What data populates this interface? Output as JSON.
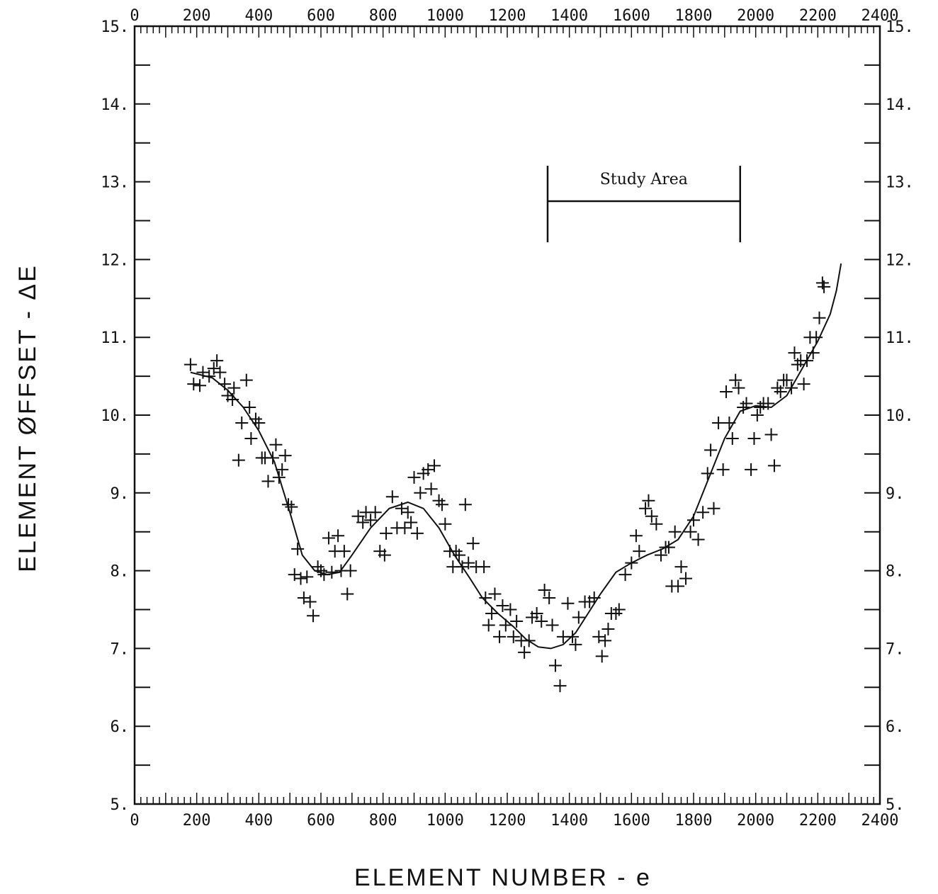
{
  "chart_data": {
    "type": "scatter",
    "xlabel": "ELEMENT NUMBER - e",
    "ylabel": "ELEMENT ØFFSET - ΔE",
    "xlim": [
      0,
      2400
    ],
    "ylim": [
      5,
      15
    ],
    "x_ticks": [
      0,
      200,
      400,
      600,
      800,
      1000,
      1200,
      1400,
      1600,
      1800,
      2000,
      2200,
      2400
    ],
    "y_ticks": [
      5,
      6,
      7,
      8,
      9,
      10,
      11,
      12,
      13,
      14,
      15
    ],
    "y_tick_labels": [
      "5.",
      "6.",
      "7.",
      "8.",
      "9.",
      "10.",
      "11.",
      "12.",
      "13.",
      "14.",
      "15."
    ],
    "grid": false,
    "legend": "none",
    "annotation": {
      "text": "Study Area",
      "x_start": 1330,
      "x_end": 1950,
      "y": 12.75
    },
    "series": [
      {
        "type": "scatter",
        "marker": "+",
        "points": [
          [
            180,
            10.65
          ],
          [
            190,
            10.4
          ],
          [
            210,
            10.38
          ],
          [
            220,
            10.55
          ],
          [
            240,
            10.5
          ],
          [
            255,
            10.6
          ],
          [
            265,
            10.7
          ],
          [
            275,
            10.55
          ],
          [
            290,
            10.4
          ],
          [
            300,
            10.25
          ],
          [
            315,
            10.2
          ],
          [
            320,
            10.35
          ],
          [
            335,
            9.42
          ],
          [
            345,
            9.9
          ],
          [
            360,
            10.45
          ],
          [
            370,
            10.1
          ],
          [
            375,
            9.7
          ],
          [
            390,
            9.95
          ],
          [
            400,
            9.9
          ],
          [
            410,
            9.45
          ],
          [
            420,
            9.45
          ],
          [
            430,
            9.15
          ],
          [
            445,
            9.45
          ],
          [
            455,
            9.62
          ],
          [
            465,
            9.2
          ],
          [
            475,
            9.3
          ],
          [
            485,
            9.48
          ],
          [
            495,
            8.85
          ],
          [
            505,
            8.82
          ],
          [
            515,
            7.95
          ],
          [
            525,
            8.28
          ],
          [
            535,
            7.9
          ],
          [
            545,
            7.65
          ],
          [
            555,
            7.92
          ],
          [
            565,
            7.6
          ],
          [
            575,
            7.42
          ],
          [
            590,
            8.05
          ],
          [
            600,
            8.0
          ],
          [
            610,
            7.95
          ],
          [
            625,
            8.42
          ],
          [
            635,
            7.98
          ],
          [
            645,
            8.25
          ],
          [
            655,
            8.45
          ],
          [
            665,
            8.0
          ],
          [
            675,
            8.25
          ],
          [
            685,
            7.7
          ],
          [
            695,
            8.0
          ],
          [
            720,
            8.7
          ],
          [
            735,
            8.62
          ],
          [
            745,
            8.75
          ],
          [
            760,
            8.65
          ],
          [
            775,
            8.75
          ],
          [
            790,
            8.25
          ],
          [
            805,
            8.2
          ],
          [
            810,
            8.48
          ],
          [
            830,
            8.95
          ],
          [
            845,
            8.55
          ],
          [
            860,
            8.8
          ],
          [
            870,
            8.55
          ],
          [
            880,
            8.75
          ],
          [
            890,
            8.62
          ],
          [
            900,
            9.2
          ],
          [
            910,
            8.48
          ],
          [
            920,
            9.0
          ],
          [
            930,
            9.25
          ],
          [
            945,
            9.3
          ],
          [
            955,
            9.05
          ],
          [
            965,
            9.35
          ],
          [
            980,
            8.9
          ],
          [
            990,
            8.85
          ],
          [
            1000,
            8.6
          ],
          [
            1015,
            8.25
          ],
          [
            1025,
            8.05
          ],
          [
            1035,
            8.25
          ],
          [
            1045,
            8.2
          ],
          [
            1055,
            8.05
          ],
          [
            1065,
            8.85
          ],
          [
            1075,
            8.1
          ],
          [
            1090,
            8.35
          ],
          [
            1100,
            8.05
          ],
          [
            1125,
            8.05
          ],
          [
            1130,
            7.65
          ],
          [
            1140,
            7.3
          ],
          [
            1150,
            7.45
          ],
          [
            1160,
            7.7
          ],
          [
            1175,
            7.15
          ],
          [
            1185,
            7.55
          ],
          [
            1195,
            7.3
          ],
          [
            1210,
            7.5
          ],
          [
            1220,
            7.15
          ],
          [
            1230,
            7.35
          ],
          [
            1245,
            7.1
          ],
          [
            1255,
            6.95
          ],
          [
            1270,
            7.1
          ],
          [
            1280,
            7.4
          ],
          [
            1295,
            7.45
          ],
          [
            1310,
            7.35
          ],
          [
            1320,
            7.75
          ],
          [
            1335,
            7.65
          ],
          [
            1345,
            7.3
          ],
          [
            1355,
            6.78
          ],
          [
            1370,
            6.52
          ],
          [
            1380,
            7.15
          ],
          [
            1395,
            7.58
          ],
          [
            1410,
            7.15
          ],
          [
            1420,
            7.05
          ],
          [
            1430,
            7.4
          ],
          [
            1450,
            7.6
          ],
          [
            1465,
            7.6
          ],
          [
            1480,
            7.65
          ],
          [
            1495,
            7.15
          ],
          [
            1505,
            6.9
          ],
          [
            1515,
            7.1
          ],
          [
            1525,
            7.25
          ],
          [
            1535,
            7.45
          ],
          [
            1550,
            7.45
          ],
          [
            1560,
            7.5
          ],
          [
            1580,
            7.95
          ],
          [
            1600,
            8.1
          ],
          [
            1615,
            8.45
          ],
          [
            1625,
            8.25
          ],
          [
            1645,
            8.8
          ],
          [
            1655,
            8.9
          ],
          [
            1665,
            8.7
          ],
          [
            1680,
            8.6
          ],
          [
            1695,
            8.2
          ],
          [
            1710,
            8.3
          ],
          [
            1720,
            8.3
          ],
          [
            1730,
            7.8
          ],
          [
            1740,
            8.5
          ],
          [
            1750,
            7.8
          ],
          [
            1760,
            8.05
          ],
          [
            1775,
            7.9
          ],
          [
            1790,
            8.5
          ],
          [
            1800,
            8.65
          ],
          [
            1815,
            8.4
          ],
          [
            1830,
            8.75
          ],
          [
            1845,
            9.25
          ],
          [
            1855,
            9.55
          ],
          [
            1865,
            8.8
          ],
          [
            1880,
            9.9
          ],
          [
            1895,
            9.3
          ],
          [
            1905,
            10.3
          ],
          [
            1915,
            9.9
          ],
          [
            1925,
            9.7
          ],
          [
            1935,
            10.45
          ],
          [
            1945,
            10.35
          ],
          [
            1960,
            10.1
          ],
          [
            1970,
            10.15
          ],
          [
            1985,
            9.3
          ],
          [
            1995,
            9.7
          ],
          [
            2005,
            10.0
          ],
          [
            2015,
            10.1
          ],
          [
            2025,
            10.15
          ],
          [
            2040,
            10.15
          ],
          [
            2050,
            9.75
          ],
          [
            2060,
            9.35
          ],
          [
            2070,
            10.35
          ],
          [
            2080,
            10.3
          ],
          [
            2090,
            10.45
          ],
          [
            2100,
            10.45
          ],
          [
            2115,
            10.35
          ],
          [
            2125,
            10.8
          ],
          [
            2135,
            10.65
          ],
          [
            2145,
            10.7
          ],
          [
            2155,
            10.4
          ],
          [
            2165,
            10.7
          ],
          [
            2175,
            11.0
          ],
          [
            2185,
            10.8
          ],
          [
            2195,
            11.0
          ],
          [
            2205,
            11.25
          ],
          [
            2215,
            11.7
          ],
          [
            2220,
            11.65
          ]
        ]
      },
      {
        "type": "line",
        "points": [
          [
            180,
            10.55
          ],
          [
            250,
            10.48
          ],
          [
            300,
            10.32
          ],
          [
            350,
            10.1
          ],
          [
            400,
            9.8
          ],
          [
            450,
            9.4
          ],
          [
            500,
            8.75
          ],
          [
            540,
            8.2
          ],
          [
            580,
            8.0
          ],
          [
            620,
            7.95
          ],
          [
            660,
            7.98
          ],
          [
            700,
            8.2
          ],
          [
            760,
            8.55
          ],
          [
            820,
            8.8
          ],
          [
            880,
            8.88
          ],
          [
            930,
            8.8
          ],
          [
            980,
            8.55
          ],
          [
            1030,
            8.2
          ],
          [
            1080,
            7.9
          ],
          [
            1120,
            7.65
          ],
          [
            1170,
            7.45
          ],
          [
            1220,
            7.28
          ],
          [
            1260,
            7.12
          ],
          [
            1300,
            7.02
          ],
          [
            1340,
            7.0
          ],
          [
            1380,
            7.05
          ],
          [
            1420,
            7.2
          ],
          [
            1460,
            7.45
          ],
          [
            1500,
            7.7
          ],
          [
            1550,
            7.98
          ],
          [
            1600,
            8.1
          ],
          [
            1650,
            8.2
          ],
          [
            1700,
            8.28
          ],
          [
            1750,
            8.4
          ],
          [
            1800,
            8.7
          ],
          [
            1850,
            9.2
          ],
          [
            1900,
            9.7
          ],
          [
            1950,
            10.05
          ],
          [
            2000,
            10.12
          ],
          [
            2050,
            10.1
          ],
          [
            2100,
            10.25
          ],
          [
            2150,
            10.6
          ],
          [
            2200,
            10.95
          ],
          [
            2240,
            11.3
          ],
          [
            2260,
            11.6
          ],
          [
            2275,
            11.95
          ]
        ]
      }
    ]
  }
}
